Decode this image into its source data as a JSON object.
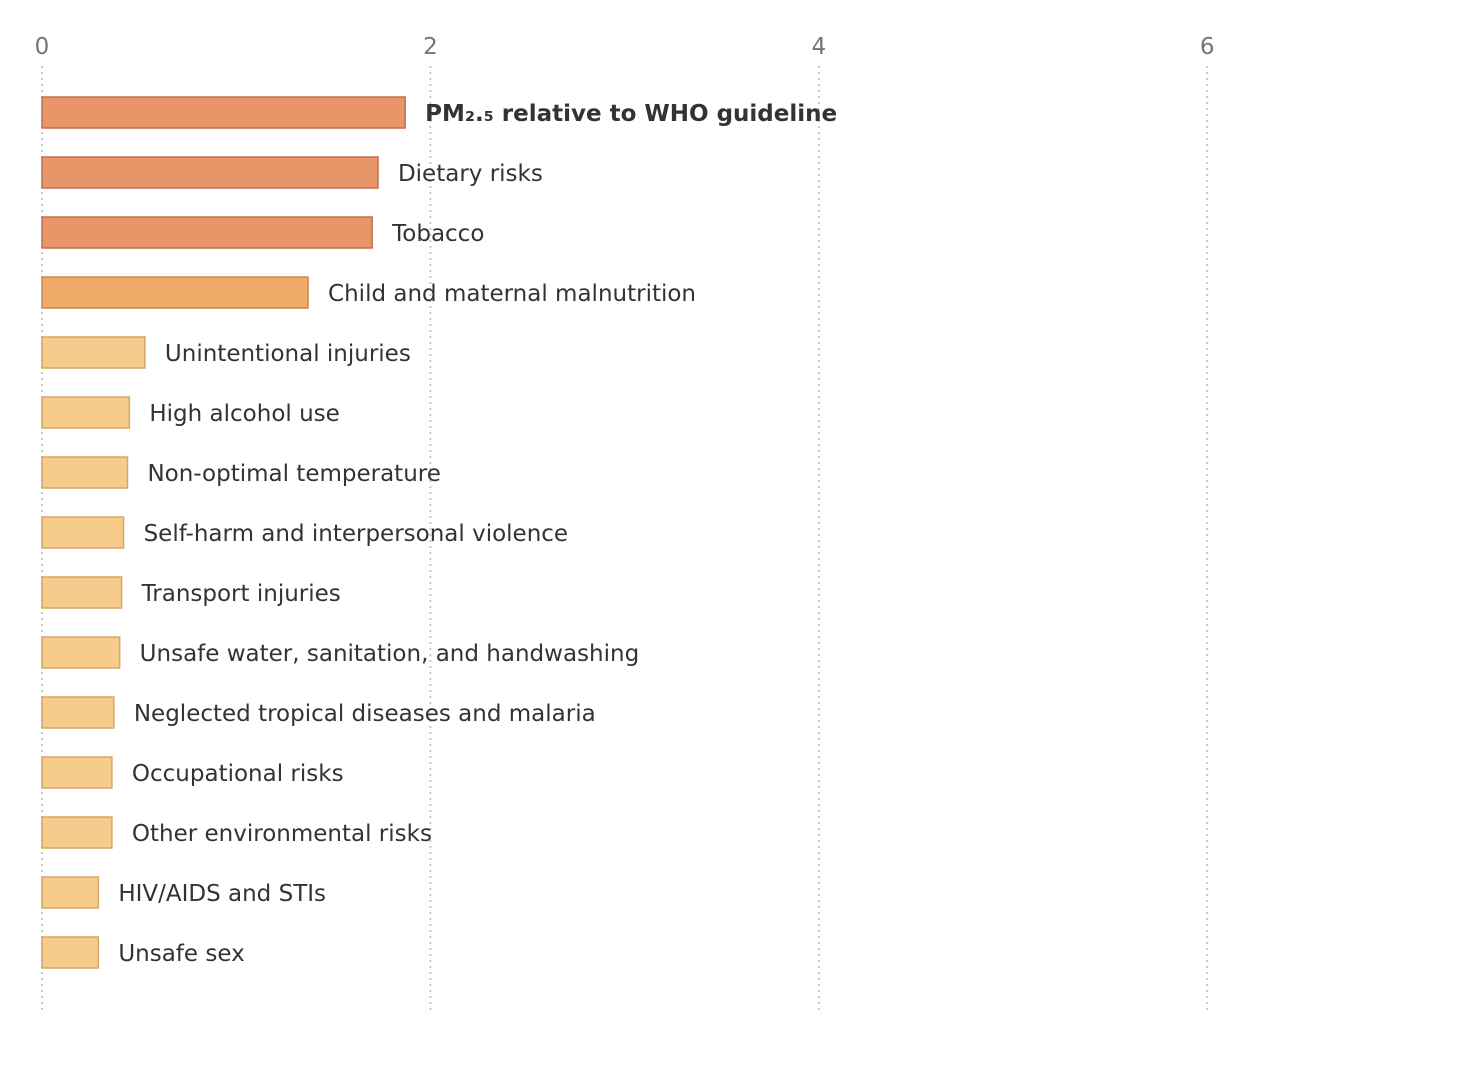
{
  "chart_data": {
    "type": "bar",
    "orientation": "horizontal",
    "title": "",
    "xlabel": "",
    "ylabel": "",
    "xlim": [
      0,
      7
    ],
    "xticks": [
      0,
      2,
      4,
      6
    ],
    "grid": true,
    "categories": [
      "PM₂.₅ relative to WHO guideline",
      "Dietary risks",
      "Tobacco",
      "Child and maternal malnutrition",
      "Unintentional injuries",
      "High alcohol use",
      "Non-optimal temperature",
      "Self-harm and interpersonal violence",
      "Transport injuries",
      "Unsafe water, sanitation, and handwashing",
      "Neglected tropical diseases and malaria",
      "Occupational risks",
      "Other environmental risks",
      "HIV/AIDS and STIs",
      "Unsafe sex"
    ],
    "values": [
      1.87,
      1.73,
      1.7,
      1.37,
      0.53,
      0.45,
      0.44,
      0.42,
      0.41,
      0.4,
      0.37,
      0.36,
      0.36,
      0.29,
      0.29
    ],
    "highlight_index": 0,
    "colors": {
      "high_fill": "#e8956a",
      "high_stroke": "#c0704a",
      "mid_fill": "#eeaa68",
      "mid_stroke": "#c98b4a",
      "low_fill": "#f7cb8c",
      "low_stroke": "#d4a865"
    }
  }
}
